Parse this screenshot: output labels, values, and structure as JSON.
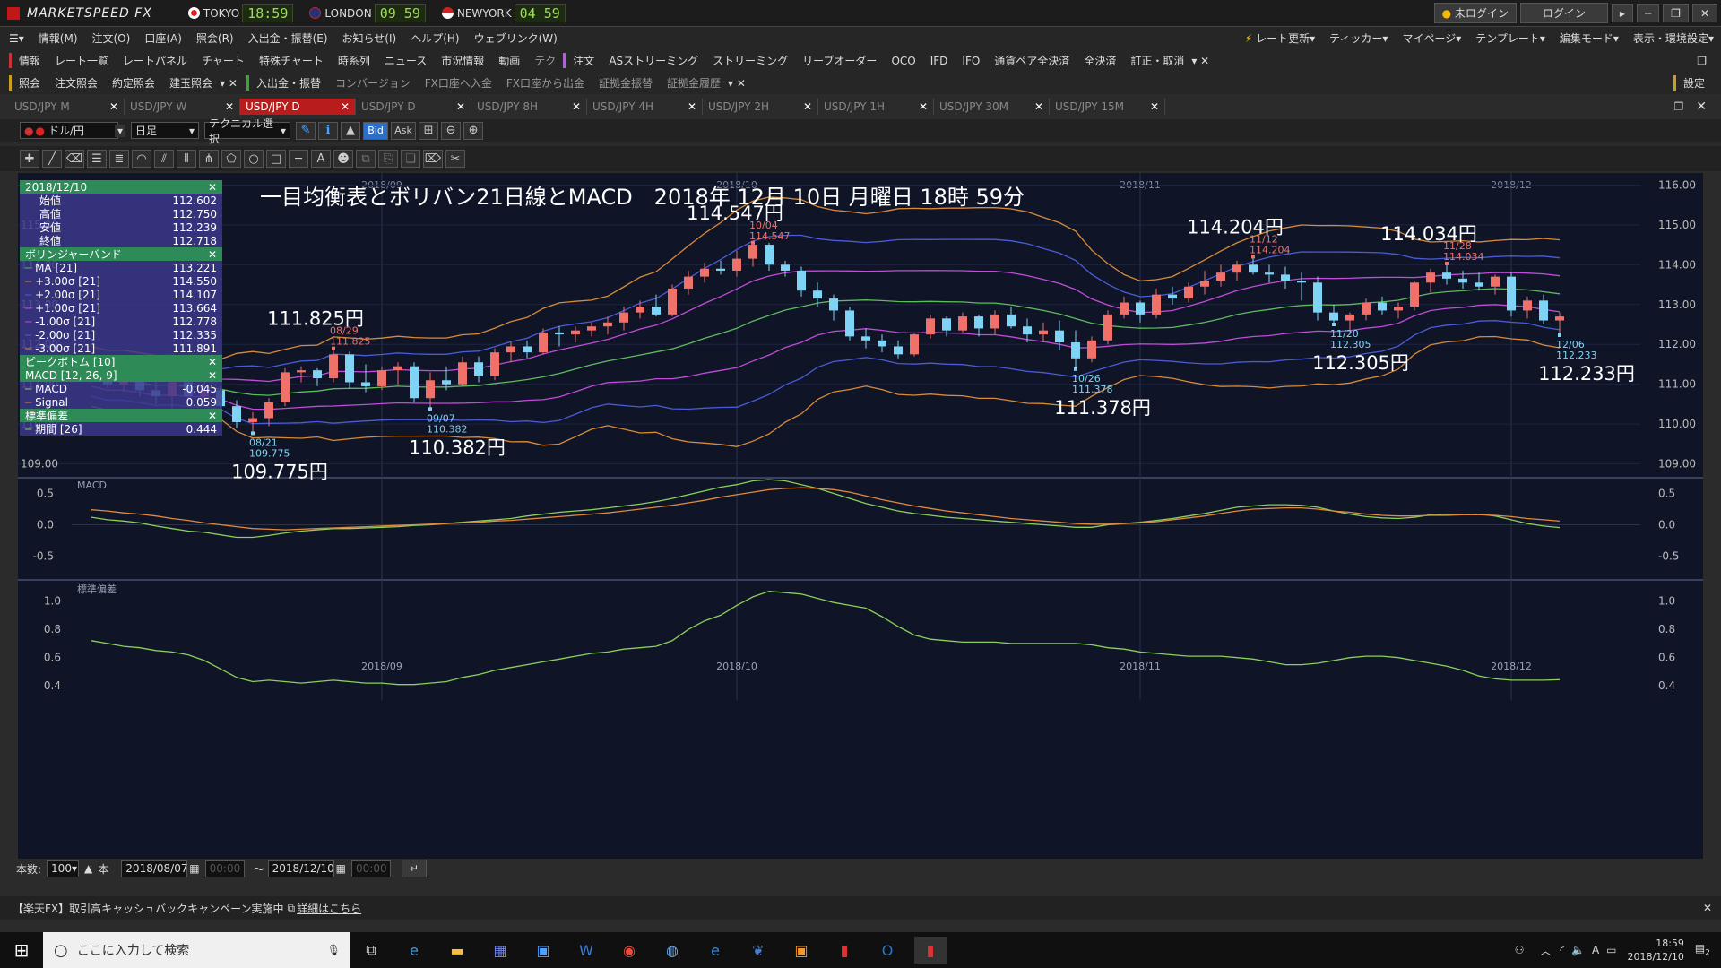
{
  "titlebar": {
    "app": "MARKETSPEED FX",
    "markets": [
      {
        "name": "TOKYO",
        "time": "18:59"
      },
      {
        "name": "LONDON",
        "time": "09 59"
      },
      {
        "name": "NEWYORK",
        "time": "04 59"
      }
    ],
    "status": "未ログイン",
    "login": "ログイン"
  },
  "menu": {
    "items": [
      "情報(M)",
      "注文(O)",
      "口座(A)",
      "照会(R)",
      "入出金・振替(E)",
      "お知らせ(I)",
      "ヘルプ(H)",
      "ウェブリンク(W)"
    ],
    "right": [
      "レート更新",
      "ティッカー",
      "マイページ",
      "テンプレート",
      "編集モード",
      "表示・環境設定"
    ]
  },
  "toolbar1": {
    "section": "情報",
    "items": [
      "レート一覧",
      "レートパネル",
      "チャート",
      "特殊チャート",
      "時系列",
      "ニュース",
      "市況情報",
      "動画",
      "テク"
    ],
    "order_section": "注文",
    "order_items": [
      "ASストリーミング",
      "ストリーミング",
      "リーブオーダー",
      "OCO",
      "IFD",
      "IFO",
      "通貨ペア全決済",
      "全決済",
      "訂正・取消"
    ]
  },
  "toolbar2": {
    "section": "照会",
    "items": [
      "注文照会",
      "約定照会",
      "建玉照会"
    ],
    "transfer": "入出金・振替",
    "items2": [
      "コンバージョン",
      "FX口座へ入金",
      "FX口座から出金",
      "証拠金振替",
      "証拠金履歴"
    ],
    "settings": "設定"
  },
  "tabs": [
    {
      "label": "USD/JPY M",
      "active": false
    },
    {
      "label": "USD/JPY W",
      "active": false
    },
    {
      "label": "USD/JPY D",
      "active": true
    },
    {
      "label": "USD/JPY D",
      "active": false
    },
    {
      "label": "USD/JPY 8H",
      "active": false
    },
    {
      "label": "USD/JPY 4H",
      "active": false
    },
    {
      "label": "USD/JPY 2H",
      "active": false
    },
    {
      "label": "USD/JPY 1H",
      "active": false
    },
    {
      "label": "USD/JPY 30M",
      "active": false
    },
    {
      "label": "USD/JPY 15M",
      "active": false
    }
  ],
  "chart_toolbar": {
    "pair": "ドル/円",
    "period": "日足",
    "technical": "テクニカル選択",
    "bid": "Bid",
    "ask": "Ask"
  },
  "info_panel": {
    "date": "2018/12/10",
    "ohlc": [
      {
        "label": "始値",
        "value": "112.602"
      },
      {
        "label": "高値",
        "value": "112.750"
      },
      {
        "label": "安値",
        "value": "112.239"
      },
      {
        "label": "終値",
        "value": "112.718"
      }
    ],
    "bb_title": "ボリンジャーバンド",
    "bb": [
      {
        "label": "MA [21]",
        "value": "113.221"
      },
      {
        "label": "+3.00σ [21]",
        "value": "114.550"
      },
      {
        "label": "+2.00σ [21]",
        "value": "114.107"
      },
      {
        "label": "+1.00σ [21]",
        "value": "113.664"
      },
      {
        "label": "-1.00σ [21]",
        "value": "112.778"
      },
      {
        "label": "-2.00σ [21]",
        "value": "112.335"
      },
      {
        "label": "-3.00σ [21]",
        "value": "111.891"
      }
    ],
    "peak_title": "ピークボトム [10]",
    "macd_title": "MACD [12, 26, 9]",
    "macd": [
      {
        "label": "MACD",
        "value": "-0.045"
      },
      {
        "label": "Signal",
        "value": "0.059"
      }
    ],
    "sd_title": "標準偏差",
    "sd": [
      {
        "label": "期間 [26]",
        "value": "0.444"
      }
    ]
  },
  "chart_title": "一目均衡表とボリバン21日線とMACD　2018年 12月 10日 月曜日 18時 59分",
  "chart_data": {
    "type": "candlestick",
    "x_labels": [
      "2018/09",
      "2018/10",
      "2018/11",
      "2018/12"
    ],
    "price_axis": [
      "116.00",
      "115.00",
      "114.00",
      "113.00",
      "112.00",
      "111.00",
      "110.00",
      "109.00"
    ],
    "price_ylim": [
      108.7,
      116.3
    ],
    "candles": [
      [
        111.3,
        111.35,
        111.05,
        111.2
      ],
      [
        111.2,
        111.25,
        110.9,
        111.0
      ],
      [
        111.0,
        111.2,
        110.8,
        111.1
      ],
      [
        111.1,
        111.15,
        110.7,
        110.85
      ],
      [
        110.85,
        111.1,
        110.5,
        110.7
      ],
      [
        110.7,
        111.15,
        110.3,
        111.05
      ],
      [
        111.05,
        111.3,
        110.6,
        110.7
      ],
      [
        110.7,
        111.1,
        110.5,
        110.85
      ],
      [
        110.85,
        110.95,
        110.3,
        110.45
      ],
      [
        110.45,
        110.6,
        109.9,
        110.05
      ],
      [
        110.05,
        110.3,
        109.77,
        110.15
      ],
      [
        110.15,
        110.65,
        109.95,
        110.55
      ],
      [
        110.55,
        111.4,
        110.45,
        111.3
      ],
      [
        111.3,
        111.45,
        111.05,
        111.35
      ],
      [
        111.35,
        111.4,
        110.95,
        111.15
      ],
      [
        111.15,
        111.9,
        111.05,
        111.75
      ],
      [
        111.75,
        111.82,
        110.9,
        111.05
      ],
      [
        111.05,
        111.5,
        110.8,
        110.95
      ],
      [
        110.95,
        111.45,
        110.85,
        111.35
      ],
      [
        111.35,
        111.55,
        111.0,
        111.45
      ],
      [
        111.45,
        111.55,
        110.55,
        110.65
      ],
      [
        110.65,
        111.3,
        110.38,
        111.1
      ],
      [
        111.1,
        111.45,
        110.85,
        111.0
      ],
      [
        111.0,
        111.7,
        110.95,
        111.55
      ],
      [
        111.55,
        111.7,
        111.05,
        111.2
      ],
      [
        111.2,
        111.9,
        111.1,
        111.8
      ],
      [
        111.8,
        112.05,
        111.55,
        111.95
      ],
      [
        111.95,
        112.1,
        111.65,
        111.8
      ],
      [
        111.8,
        112.4,
        111.75,
        112.3
      ],
      [
        112.3,
        112.45,
        111.95,
        112.25
      ],
      [
        112.25,
        112.45,
        112.05,
        112.35
      ],
      [
        112.35,
        112.55,
        112.2,
        112.45
      ],
      [
        112.45,
        112.7,
        112.25,
        112.55
      ],
      [
        112.55,
        112.95,
        112.35,
        112.8
      ],
      [
        112.8,
        113.1,
        112.65,
        112.95
      ],
      [
        112.95,
        113.25,
        112.7,
        112.75
      ],
      [
        112.75,
        113.5,
        112.7,
        113.4
      ],
      [
        113.4,
        113.85,
        113.25,
        113.7
      ],
      [
        113.7,
        114.05,
        113.55,
        113.9
      ],
      [
        113.9,
        114.1,
        113.75,
        113.85
      ],
      [
        113.85,
        114.35,
        113.7,
        114.15
      ],
      [
        114.15,
        114.55,
        113.95,
        114.5
      ],
      [
        114.5,
        114.55,
        113.85,
        114.0
      ],
      [
        114.0,
        114.1,
        113.7,
        113.85
      ],
      [
        113.85,
        113.95,
        113.2,
        113.35
      ],
      [
        113.35,
        113.55,
        112.95,
        113.15
      ],
      [
        113.15,
        113.25,
        112.6,
        112.85
      ],
      [
        112.85,
        112.95,
        112.1,
        112.2
      ],
      [
        112.2,
        112.4,
        111.9,
        112.1
      ],
      [
        112.1,
        112.25,
        111.8,
        111.95
      ],
      [
        111.95,
        112.1,
        111.65,
        111.75
      ],
      [
        111.75,
        112.3,
        111.7,
        112.25
      ],
      [
        112.25,
        112.75,
        112.15,
        112.65
      ],
      [
        112.65,
        112.7,
        112.2,
        112.35
      ],
      [
        112.35,
        112.8,
        112.3,
        112.7
      ],
      [
        112.7,
        112.75,
        112.2,
        112.4
      ],
      [
        112.4,
        112.85,
        112.25,
        112.75
      ],
      [
        112.75,
        112.95,
        112.4,
        112.45
      ],
      [
        112.45,
        112.65,
        112.05,
        112.25
      ],
      [
        112.25,
        112.55,
        112.05,
        112.35
      ],
      [
        112.35,
        112.6,
        111.85,
        112.05
      ],
      [
        112.05,
        112.35,
        111.38,
        111.65
      ],
      [
        111.65,
        112.2,
        111.55,
        112.1
      ],
      [
        112.1,
        112.85,
        112.0,
        112.75
      ],
      [
        112.75,
        113.2,
        112.65,
        113.05
      ],
      [
        113.05,
        113.1,
        112.55,
        112.75
      ],
      [
        112.75,
        113.4,
        112.65,
        113.25
      ],
      [
        113.25,
        113.45,
        113.0,
        113.15
      ],
      [
        113.15,
        113.55,
        113.05,
        113.45
      ],
      [
        113.45,
        113.85,
        113.25,
        113.6
      ],
      [
        113.6,
        114.0,
        113.45,
        113.8
      ],
      [
        113.8,
        114.1,
        113.6,
        114.0
      ],
      [
        114.0,
        114.2,
        113.75,
        113.8
      ],
      [
        113.8,
        114.0,
        113.55,
        113.75
      ],
      [
        113.75,
        113.95,
        113.4,
        113.6
      ],
      [
        113.6,
        113.8,
        113.1,
        113.55
      ],
      [
        113.55,
        113.7,
        112.6,
        112.8
      ],
      [
        112.8,
        113.0,
        112.5,
        112.6
      ],
      [
        112.6,
        112.8,
        112.3,
        112.75
      ],
      [
        112.75,
        113.15,
        112.6,
        113.05
      ],
      [
        113.05,
        113.2,
        112.75,
        112.85
      ],
      [
        112.85,
        113.05,
        112.65,
        112.95
      ],
      [
        112.95,
        113.6,
        112.85,
        113.55
      ],
      [
        113.55,
        113.9,
        113.3,
        113.8
      ],
      [
        113.8,
        114.03,
        113.5,
        113.65
      ],
      [
        113.65,
        113.85,
        113.4,
        113.55
      ],
      [
        113.55,
        113.8,
        113.35,
        113.45
      ],
      [
        113.45,
        113.75,
        113.25,
        113.7
      ],
      [
        113.7,
        113.8,
        112.7,
        112.85
      ],
      [
        112.85,
        113.2,
        112.65,
        113.1
      ],
      [
        113.1,
        113.25,
        112.5,
        112.6
      ],
      [
        112.6,
        112.8,
        112.23,
        112.7
      ]
    ],
    "macd_axis": [
      "0.5",
      "0.0",
      "-0.5"
    ],
    "macd_ylim": [
      -0.85,
      0.75
    ],
    "macd": [
      0.12,
      0.08,
      0.06,
      0.03,
      -0.02,
      -0.06,
      -0.1,
      -0.12,
      -0.16,
      -0.2,
      -0.2,
      -0.17,
      -0.13,
      -0.1,
      -0.08,
      -0.06,
      -0.06,
      -0.05,
      -0.04,
      -0.03,
      -0.01,
      0.0,
      0.02,
      0.04,
      0.06,
      0.08,
      0.1,
      0.14,
      0.17,
      0.2,
      0.22,
      0.24,
      0.27,
      0.3,
      0.33,
      0.37,
      0.42,
      0.48,
      0.54,
      0.6,
      0.64,
      0.7,
      0.72,
      0.7,
      0.64,
      0.58,
      0.5,
      0.42,
      0.34,
      0.28,
      0.22,
      0.18,
      0.15,
      0.12,
      0.1,
      0.08,
      0.06,
      0.04,
      0.02,
      0.0,
      -0.02,
      -0.04,
      -0.04,
      0.0,
      0.02,
      0.04,
      0.07,
      0.1,
      0.14,
      0.18,
      0.23,
      0.28,
      0.3,
      0.32,
      0.32,
      0.31,
      0.28,
      0.22,
      0.17,
      0.13,
      0.11,
      0.1,
      0.12,
      0.16,
      0.17,
      0.16,
      0.17,
      0.14,
      0.08,
      0.02,
      -0.02,
      -0.045
    ],
    "signal": [
      0.24,
      0.22,
      0.19,
      0.17,
      0.14,
      0.1,
      0.07,
      0.03,
      0.0,
      -0.03,
      -0.06,
      -0.07,
      -0.08,
      -0.07,
      -0.06,
      -0.05,
      -0.04,
      -0.03,
      -0.02,
      -0.01,
      0.0,
      0.01,
      0.02,
      0.03,
      0.04,
      0.06,
      0.07,
      0.09,
      0.11,
      0.13,
      0.15,
      0.17,
      0.19,
      0.22,
      0.25,
      0.28,
      0.31,
      0.35,
      0.39,
      0.44,
      0.48,
      0.52,
      0.56,
      0.58,
      0.59,
      0.58,
      0.56,
      0.52,
      0.46,
      0.4,
      0.35,
      0.3,
      0.26,
      0.22,
      0.19,
      0.16,
      0.13,
      0.1,
      0.08,
      0.06,
      0.04,
      0.02,
      0.01,
      0.01,
      0.02,
      0.03,
      0.05,
      0.08,
      0.11,
      0.14,
      0.18,
      0.22,
      0.25,
      0.26,
      0.27,
      0.27,
      0.25,
      0.22,
      0.2,
      0.17,
      0.15,
      0.14,
      0.14,
      0.15,
      0.15,
      0.16,
      0.16,
      0.15,
      0.13,
      0.1,
      0.08,
      0.059
    ],
    "sd_axis": [
      "1.0",
      "0.8",
      "0.6",
      "0.4"
    ],
    "sd_ylim": [
      0.3,
      1.15
    ],
    "sd": [
      0.72,
      0.7,
      0.68,
      0.67,
      0.65,
      0.64,
      0.62,
      0.58,
      0.52,
      0.46,
      0.43,
      0.44,
      0.43,
      0.42,
      0.43,
      0.44,
      0.43,
      0.42,
      0.42,
      0.41,
      0.41,
      0.42,
      0.43,
      0.46,
      0.48,
      0.51,
      0.53,
      0.55,
      0.57,
      0.59,
      0.61,
      0.63,
      0.64,
      0.66,
      0.67,
      0.68,
      0.72,
      0.8,
      0.86,
      0.9,
      0.97,
      1.03,
      1.07,
      1.06,
      1.05,
      1.02,
      0.99,
      0.97,
      0.95,
      0.89,
      0.82,
      0.76,
      0.73,
      0.72,
      0.71,
      0.71,
      0.71,
      0.7,
      0.7,
      0.7,
      0.7,
      0.7,
      0.69,
      0.67,
      0.66,
      0.64,
      0.63,
      0.62,
      0.61,
      0.61,
      0.61,
      0.6,
      0.59,
      0.57,
      0.55,
      0.55,
      0.56,
      0.58,
      0.6,
      0.61,
      0.61,
      0.6,
      0.58,
      0.56,
      0.54,
      0.51,
      0.47,
      0.45,
      0.44,
      0.44,
      0.44,
      0.444
    ]
  },
  "annotations": [
    {
      "price": "109.775円",
      "date": "08/21",
      "small": "109.775"
    },
    {
      "price": "110.382円",
      "date": "09/07",
      "small": "110.382"
    },
    {
      "price": "111.825円",
      "date": "08/29",
      "small": "111.825"
    },
    {
      "price": "114.547円",
      "date": "10/04",
      "small": "114.547"
    },
    {
      "price": "111.378円",
      "date": "10/26",
      "small": "111.378"
    },
    {
      "price": "114.204円",
      "date": "11/12",
      "small": "114.204"
    },
    {
      "price": "112.305円",
      "date": "11/20",
      "small": "112.305"
    },
    {
      "price": "114.034円",
      "date": "11/28",
      "small": "114.034"
    },
    {
      "price": "112.233円",
      "date": "12/06",
      "small": "112.233"
    }
  ],
  "panel_labels": {
    "macd": "MACD",
    "sd": "標準偏差"
  },
  "bottom": {
    "count_label": "本数:",
    "count": "100",
    "unit": "本",
    "from": "2018/08/07",
    "to": "2018/12/10",
    "tilde": "～"
  },
  "news": {
    "text": "【楽天FX】取引高キャッシュバックキャンペーン実施中",
    "link": "詳細はこちら"
  },
  "taskbar": {
    "search_placeholder": "ここに入力して検索",
    "time": "18:59",
    "date": "2018/12/10",
    "notification_count": "2"
  },
  "colors": {
    "up": "#f0706a",
    "down": "#7fd4f5",
    "ma": "#5dbb5d",
    "sigma1": "#c04cd8",
    "sigma2": "#4a5bd8",
    "sigma3": "#d98a38",
    "macd": "#8ad05a",
    "signal": "#e0893c"
  }
}
